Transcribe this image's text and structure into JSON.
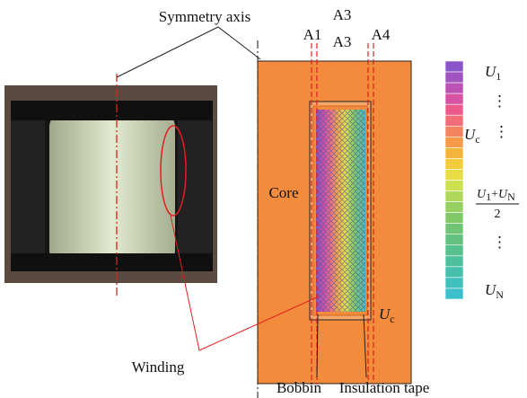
{
  "labels": {
    "symmetry_axis": "Symmetry axis",
    "a1": "A1",
    "a3_top": "A3",
    "a3_bottom": "A3",
    "a4": "A4",
    "core": "Core",
    "winding": "Winding",
    "bobbin": "Bobbin",
    "insulation_tape": "Insulation tape",
    "core_potential": {
      "symbol": "U",
      "subscript": "c"
    }
  },
  "colorbar": {
    "top": {
      "symbol": "U",
      "subscript": "1"
    },
    "dots_upper": "⋮",
    "core": {
      "symbol": "U",
      "subscript": "c"
    },
    "dots_core": "⋮",
    "middle": {
      "n1": "U",
      "s1": "1",
      "plus": "+",
      "n2": "U",
      "s2": "N",
      "denominator": "2"
    },
    "dots_lower": "⋮",
    "bottom": {
      "symbol": "U",
      "subscript": "N"
    }
  }
}
